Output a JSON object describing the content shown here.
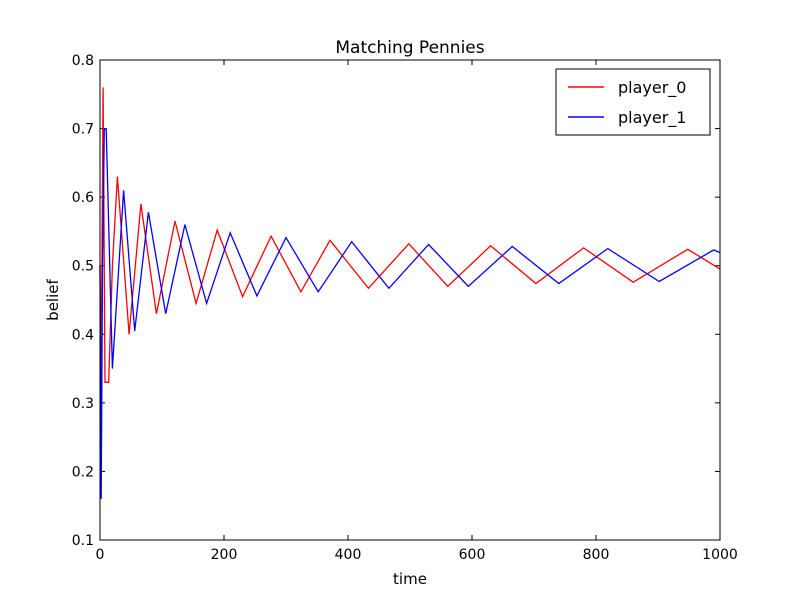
{
  "chart_data": {
    "type": "line",
    "title": "Matching Pennies",
    "xlabel": "time",
    "ylabel": "belief",
    "xlim": [
      0,
      1000
    ],
    "ylim": [
      0.1,
      0.8
    ],
    "xticks": [
      0,
      200,
      400,
      600,
      800,
      1000
    ],
    "yticks": [
      0.1,
      0.2,
      0.3,
      0.4,
      0.5,
      0.6,
      0.7,
      0.8
    ],
    "xtick_labels": [
      "0",
      "200",
      "400",
      "600",
      "800",
      "1000"
    ],
    "ytick_labels": [
      "0.1",
      "0.2",
      "0.3",
      "0.4",
      "0.5",
      "0.6",
      "0.7",
      "0.8"
    ],
    "grid": false,
    "legend_position": "top-right",
    "series": [
      {
        "name": "player_0",
        "color": "#ff0000",
        "x": [
          0,
          2,
          5,
          8,
          14,
          20,
          28,
          47,
          66,
          91,
          121,
          155,
          189,
          230,
          276,
          324,
          371,
          433,
          498,
          561,
          630,
          703,
          780,
          860,
          948,
          1000
        ],
        "y": [
          0.5,
          0.33,
          0.76,
          0.33,
          0.33,
          0.5,
          0.63,
          0.4,
          0.59,
          0.43,
          0.565,
          0.445,
          0.552,
          0.455,
          0.543,
          0.462,
          0.537,
          0.467,
          0.532,
          0.47,
          0.529,
          0.474,
          0.526,
          0.476,
          0.524,
          0.495
        ]
      },
      {
        "name": "player_1",
        "color": "#0000ff",
        "x": [
          0,
          2,
          4,
          7,
          10,
          20,
          38,
          56,
          78,
          106,
          137,
          172,
          210,
          253,
          300,
          352,
          406,
          466,
          530,
          594,
          665,
          740,
          819,
          902,
          990,
          1000
        ],
        "y": [
          0.5,
          0.16,
          0.5,
          0.7,
          0.7,
          0.35,
          0.61,
          0.405,
          0.578,
          0.43,
          0.56,
          0.445,
          0.548,
          0.456,
          0.541,
          0.462,
          0.535,
          0.467,
          0.531,
          0.47,
          0.528,
          0.474,
          0.525,
          0.477,
          0.523,
          0.519
        ]
      }
    ]
  }
}
